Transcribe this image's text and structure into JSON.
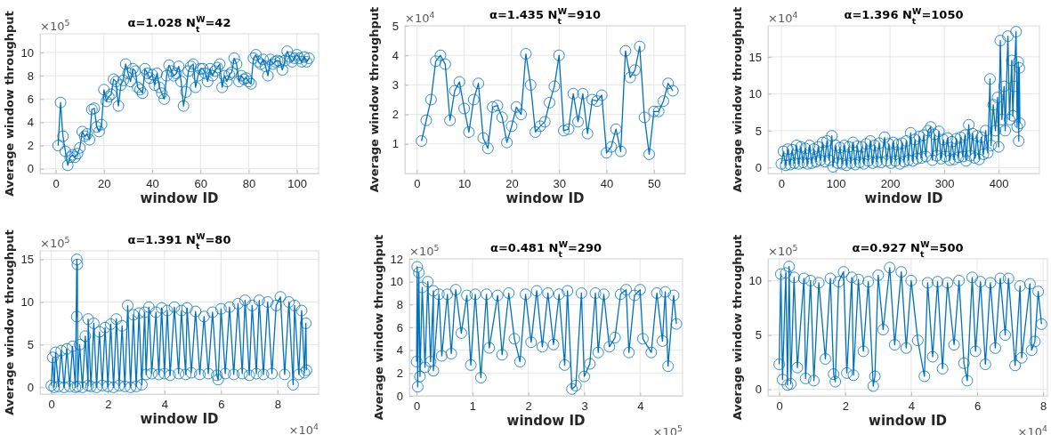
{
  "chart_data": [
    {
      "type": "line",
      "title": "α=1.028 N$_{t}$$^{W}$=42",
      "xlabel": "window ID",
      "ylabel": "Average window throughput",
      "annotations": [
        "×10$^{5}$"
      ],
      "marker": "circle",
      "grid": true,
      "xlim": [
        -6.5,
        109
      ],
      "ylim": [
        -0.4,
        11.6
      ],
      "xticks": [
        0,
        20,
        40,
        60,
        80,
        100
      ],
      "yticks": [
        0,
        2,
        4,
        6,
        8,
        10
      ],
      "x": [
        1,
        2,
        3,
        4,
        5,
        6,
        7,
        8,
        9,
        10,
        11,
        12,
        13,
        14,
        15,
        16,
        17,
        18,
        19,
        20,
        21,
        22,
        23,
        24,
        25,
        26,
        27,
        28,
        29,
        30,
        31,
        32,
        33,
        34,
        35,
        36,
        37,
        38,
        39,
        40,
        41,
        42,
        43,
        44,
        45,
        46,
        47,
        48,
        49,
        50,
        51,
        52,
        53,
        54,
        55,
        56,
        57,
        58,
        59,
        60,
        61,
        62,
        63,
        64,
        65,
        66,
        67,
        68,
        69,
        70,
        71,
        72,
        73,
        74,
        75,
        76,
        77,
        78,
        79,
        80,
        81,
        82,
        83,
        84,
        85,
        86,
        87,
        88,
        89,
        90,
        91,
        92,
        93,
        94,
        95,
        96,
        97,
        98,
        99,
        100,
        101,
        102,
        103,
        104,
        105
      ],
      "series": [
        {
          "color": "#0072bd",
          "values": [
            2.0,
            5.7,
            2.8,
            1.5,
            0.3,
            1.0,
            1.2,
            1.0,
            1.3,
            1.8,
            3.2,
            2.8,
            3.0,
            2.5,
            5.1,
            5.2,
            3.6,
            3.2,
            3.8,
            6.8,
            5.8,
            6.2,
            6.4,
            7.7,
            7.5,
            5.4,
            7.2,
            7.6,
            9.0,
            8.2,
            7.5,
            8.6,
            8.4,
            7.0,
            6.8,
            6.5,
            8.6,
            8.2,
            7.8,
            8.1,
            7.2,
            8.2,
            7.0,
            6.5,
            6.0,
            8.0,
            8.9,
            8.4,
            8.0,
            8.2,
            8.8,
            7.5,
            5.4,
            6.6,
            8.4,
            8.8,
            9.0,
            7.0,
            8.0,
            8.6,
            8.6,
            8.2,
            7.5,
            8.6,
            8.0,
            8.4,
            8.7,
            9.0,
            7.0,
            8.0,
            7.5,
            8.1,
            8.3,
            9.5,
            9.0,
            7.5,
            8.0,
            7.7,
            7.8,
            7.5,
            7.3,
            9.5,
            9.8,
            9.2,
            9.0,
            9.4,
            8.8,
            8.0,
            9.4,
            9.0,
            9.2,
            9.3,
            9.2,
            8.5,
            9.3,
            10.1,
            9.6,
            9.2,
            9.5,
            9.8,
            9.5,
            9.2,
            9.6,
            9.2,
            9.5
          ]
        }
      ]
    },
    {
      "type": "line",
      "title": "α=1.435 N$_{t}$$^{W}$=910",
      "xlabel": "window ID",
      "ylabel": "Average window throughput",
      "annotations": [
        "×10$^{4}$"
      ],
      "marker": "circle",
      "grid": true,
      "xlim": [
        -2.5,
        56.6
      ],
      "ylim": [
        0,
        5
      ],
      "xticks": [
        0,
        10,
        20,
        30,
        40,
        50
      ],
      "yticks": [
        1,
        2,
        3,
        4,
        5
      ],
      "x": [
        1,
        2,
        3,
        4,
        5,
        6,
        7,
        8,
        9,
        10,
        11,
        12,
        13,
        14,
        15,
        16,
        17,
        18,
        19,
        20,
        21,
        22,
        23,
        24,
        25,
        26,
        27,
        28,
        29,
        30,
        31,
        32,
        33,
        34,
        35,
        36,
        37,
        38,
        39,
        40,
        41,
        42,
        43,
        44,
        45,
        46,
        47,
        48,
        49,
        50,
        51,
        52,
        53,
        54
      ],
      "series": [
        {
          "color": "#0072bd",
          "values": [
            1.1,
            1.8,
            2.5,
            3.8,
            4.0,
            3.7,
            1.8,
            2.8,
            3.1,
            2.2,
            1.4,
            2.5,
            3.05,
            1.2,
            0.85,
            2.25,
            2.3,
            1.9,
            1.05,
            1.6,
            2.25,
            2.0,
            4.05,
            3.0,
            1.4,
            1.6,
            1.75,
            2.4,
            2.95,
            4.0,
            1.45,
            1.5,
            2.7,
            1.75,
            2.7,
            1.35,
            2.5,
            2.45,
            2.65,
            0.7,
            0.9,
            1.5,
            0.75,
            4.15,
            3.25,
            3.5,
            4.3,
            1.9,
            0.65,
            2.1,
            2.1,
            2.45,
            3.05,
            2.8
          ]
        }
      ]
    },
    {
      "type": "line",
      "title": "α=1.396 N$_{t}$$^{W}$=1050",
      "xlabel": "window ID",
      "ylabel": "Average window throughput",
      "annotations": [
        "×10$^{4}$"
      ],
      "marker": "circle",
      "grid": true,
      "xlim": [
        -24.5,
        475
      ],
      "ylim": [
        -0.8,
        19.2
      ],
      "xticks": [
        0,
        100,
        200,
        300,
        400
      ],
      "yticks": [
        0,
        5,
        10,
        15
      ],
      "x": [
        0,
        4,
        8,
        12,
        16,
        20,
        24,
        28,
        32,
        36,
        40,
        44,
        48,
        52,
        56,
        60,
        64,
        68,
        72,
        76,
        80,
        84,
        88,
        93,
        95,
        100,
        104,
        108,
        112,
        116,
        120,
        124,
        128,
        132,
        136,
        140,
        144,
        148,
        152,
        156,
        160,
        164,
        168,
        172,
        176,
        180,
        184,
        190,
        194,
        198,
        202,
        206,
        210,
        214,
        218,
        222,
        226,
        230,
        234,
        238,
        242,
        246,
        250,
        254,
        258,
        262,
        266,
        270,
        275,
        278,
        282,
        286,
        290,
        294,
        298,
        302,
        306,
        310,
        314,
        318,
        322,
        326,
        330,
        334,
        338,
        340,
        345,
        348,
        352,
        356,
        360,
        364,
        368,
        372,
        376,
        380,
        384,
        386,
        390,
        394,
        398,
        400,
        403,
        406,
        410,
        412,
        417,
        420,
        424,
        426,
        428,
        432,
        434,
        436,
        437,
        438,
        439
      ],
      "series": [
        {
          "color": "#0072bd",
          "values": [
            0.5,
            2.2,
            0.3,
            2.5,
            0.4,
            2.4,
            0.6,
            3.0,
            0.5,
            2.8,
            0.7,
            2.6,
            0.5,
            3.0,
            0.6,
            2.5,
            0.8,
            2.8,
            1.0,
            3.4,
            0.8,
            3.6,
            1.0,
            4.3,
            0.1,
            3.0,
            0.6,
            2.7,
            0.5,
            3.0,
            0.3,
            2.8,
            0.6,
            3.4,
            0.4,
            2.9,
            0.7,
            2.8,
            0.5,
            3.2,
            0.9,
            3.6,
            0.6,
            3.0,
            0.8,
            3.3,
            0.7,
            4.1,
            0.9,
            3.2,
            0.6,
            3.4,
            0.9,
            3.1,
            0.5,
            3.3,
            0.8,
            3.6,
            1.0,
            4.7,
            0.9,
            3.8,
            1.2,
            4.2,
            1.3,
            4.4,
            1.5,
            5.0,
            5.5,
            1.0,
            4.5,
            1.6,
            4.9,
            1.2,
            3.8,
            1.5,
            4.0,
            1.0,
            3.5,
            1.1,
            3.9,
            1.4,
            4.1,
            1.5,
            4.4,
            0.9,
            5.8,
            1.6,
            4.6,
            1.3,
            4.3,
            1.1,
            4.1,
            1.8,
            5.0,
            2.0,
            12.0,
            3.0,
            8.5,
            5.0,
            9.5,
            2.8,
            17.2,
            6.5,
            11.0,
            5.0,
            17.8,
            6.5,
            14.5,
            7.0,
            11.0,
            18.4,
            5.5,
            14.3,
            3.6,
            13.5,
            6.0
          ]
        }
      ]
    },
    {
      "type": "line",
      "title": "α=1.391 N$_{t}$$^{W}$=80",
      "xlabel": "window ID",
      "ylabel": "Average window throughput",
      "annotations": [
        "×10$^{5}$",
        "×10$^{4}$"
      ],
      "marker": "circle",
      "grid": true,
      "xlim": [
        -0.4,
        9.45
      ],
      "ylim": [
        -0.8,
        16
      ],
      "xticks": [
        0,
        2,
        4,
        6,
        8
      ],
      "yticks": [
        0,
        5,
        10,
        15
      ],
      "x": [
        0,
        0.05,
        0.1,
        0.15,
        0.25,
        0.35,
        0.45,
        0.55,
        0.65,
        0.75,
        0.85,
        0.9,
        0.9,
        0.92,
        0.93,
        1.0,
        1.1,
        1.2,
        1.3,
        1.3,
        1.4,
        1.5,
        1.6,
        1.7,
        1.8,
        1.9,
        2.0,
        2.1,
        2.2,
        2.3,
        2.4,
        2.5,
        2.6,
        2.7,
        2.8,
        2.9,
        3.0,
        3.1,
        3.2,
        3.3,
        3.35,
        3.45,
        3.55,
        3.7,
        3.8,
        3.9,
        4.0,
        4.1,
        4.2,
        4.35,
        4.5,
        4.6,
        4.75,
        4.8,
        4.95,
        5.1,
        5.25,
        5.4,
        5.55,
        5.7,
        5.85,
        5.9,
        6.0,
        6.15,
        6.3,
        6.45,
        6.6,
        6.75,
        6.85,
        7.0,
        7.1,
        7.25,
        7.35,
        7.5,
        7.65,
        7.8,
        7.95,
        8.1,
        8.25,
        8.4,
        8.55,
        8.6,
        8.75,
        8.85,
        8.95,
        9.0,
        9.02
      ],
      "series": [
        {
          "color": "#0072bd",
          "values": [
            0.2,
            3.5,
            0.0,
            4.1,
            0.1,
            4.3,
            0.0,
            4.5,
            0.1,
            4.8,
            0.0,
            15.0,
            8.3,
            14.4,
            0.1,
            5.0,
            0.0,
            6.0,
            0.2,
            8.0,
            0.1,
            7.5,
            0.0,
            6.5,
            0.2,
            7.0,
            0.1,
            7.4,
            0.0,
            8.0,
            0.2,
            7.2,
            0.1,
            9.6,
            0.0,
            8.5,
            0.1,
            8.7,
            0.3,
            8.8,
            1.5,
            9.4,
            1.6,
            8.8,
            1.5,
            9.3,
            1.6,
            9.0,
            1.4,
            9.4,
            1.6,
            9.0,
            1.5,
            9.3,
            1.7,
            8.9,
            1.5,
            8.3,
            1.6,
            8.8,
            1.4,
            0.9,
            9.2,
            1.6,
            9.4,
            1.5,
            9.8,
            1.6,
            10.2,
            1.4,
            9.6,
            1.6,
            10.2,
            1.5,
            10.0,
            1.6,
            9.6,
            10.6,
            1.5,
            10.0,
            0.3,
            9.6,
            1.5,
            9.0,
            1.7,
            7.5,
            2.0
          ]
        }
      ]
    },
    {
      "type": "line",
      "title": "α=0.481 N$_{t}$$^{W}$=290",
      "xlabel": "window ID",
      "ylabel": "Average window throughput",
      "annotations": [
        "×10$^{5}$",
        "×10$^{5}$"
      ],
      "marker": "circle",
      "grid": true,
      "xlim": [
        -0.13,
        4.76
      ],
      "ylim": [
        0,
        12
      ],
      "xticks": [
        0,
        1,
        2,
        3,
        4
      ],
      "yticks": [
        0,
        2,
        4,
        6,
        8,
        10,
        12
      ],
      "x": [
        0,
        0.01,
        0.02,
        0.04,
        0.06,
        0.1,
        0.15,
        0.2,
        0.25,
        0.3,
        0.3,
        0.4,
        0.45,
        0.55,
        0.62,
        0.7,
        0.8,
        0.9,
        0.97,
        1.05,
        1.15,
        1.25,
        1.3,
        1.45,
        1.53,
        1.65,
        1.75,
        1.85,
        1.95,
        2.05,
        2.15,
        2.25,
        2.35,
        2.45,
        2.55,
        2.65,
        2.7,
        2.78,
        2.85,
        2.95,
        3.0,
        3.1,
        3.2,
        3.25,
        3.35,
        3.45,
        3.55,
        3.65,
        3.75,
        3.8,
        3.9,
        4.0,
        4.05,
        4.2,
        4.3,
        4.4,
        4.45,
        4.5,
        4.6,
        4.65
      ],
      "series": [
        {
          "color": "#0072bd",
          "values": [
            3.0,
            11.3,
            0.8,
            10.8,
            1.7,
            9.5,
            2.5,
            10.0,
            3.0,
            9.2,
            2.2,
            8.9,
            3.5,
            8.9,
            3.7,
            9.3,
            5.5,
            8.8,
            2.7,
            8.9,
            1.6,
            8.9,
            4.2,
            8.8,
            3.6,
            9.0,
            5.0,
            3.0,
            8.9,
            4.7,
            9.2,
            4.3,
            9.0,
            4.5,
            8.9,
            2.7,
            9.2,
            0.6,
            0.9,
            9.0,
            1.7,
            2.8,
            9.0,
            3.8,
            8.9,
            4.3,
            5.1,
            8.9,
            9.3,
            3.8,
            8.8,
            9.3,
            5.0,
            3.8,
            9.0,
            4.8,
            9.1,
            2.6,
            8.8,
            6.3
          ]
        }
      ]
    },
    {
      "type": "line",
      "title": "α=0.927 N$_{t}$$^{W}$=500",
      "xlabel": "window ID",
      "ylabel": "Average window throughput",
      "annotations": [
        "×10$^{5}$",
        "×10$^{4}$"
      ],
      "marker": "circle",
      "grid": true,
      "xlim": [
        -0.34,
        8.13
      ],
      "ylim": [
        -0.6,
        12
      ],
      "xticks": [
        0,
        2,
        4,
        6,
        8
      ],
      "yticks": [
        0,
        5,
        10
      ],
      "x": [
        0,
        0.05,
        0.1,
        0.2,
        0.25,
        0.3,
        0.35,
        0.45,
        0.55,
        0.75,
        0.8,
        0.95,
        1.05,
        1.2,
        1.4,
        1.55,
        1.65,
        1.7,
        1.8,
        1.95,
        2.05,
        2.2,
        2.25,
        2.4,
        2.55,
        2.7,
        2.85,
        2.9,
        3.0,
        3.15,
        3.35,
        3.5,
        3.7,
        3.85,
        4.0,
        4.2,
        4.4,
        4.5,
        4.65,
        4.8,
        4.95,
        5.1,
        5.3,
        5.45,
        5.6,
        5.7,
        5.85,
        5.95,
        6.1,
        6.25,
        6.4,
        6.55,
        6.7,
        6.85,
        6.95,
        7.15,
        7.3,
        7.35,
        7.6,
        7.65,
        7.75,
        7.85,
        7.95
      ],
      "series": [
        {
          "color": "#0072bd",
          "values": [
            2.3,
            10.6,
            0.9,
            10.7,
            0.4,
            11.3,
            0.5,
            10.3,
            2.0,
            10.2,
            1.0,
            10.0,
            0.8,
            9.8,
            2.8,
            10.2,
            1.4,
            0.7,
            9.9,
            10.8,
            1.5,
            10.3,
            1.3,
            10.1,
            3.5,
            9.9,
            0.3,
            1.2,
            10.5,
            5.5,
            11.2,
            4.1,
            10.8,
            3.8,
            10.0,
            4.5,
            1.2,
            9.8,
            3.0,
            9.9,
            1.9,
            9.8,
            4.1,
            10.0,
            2.4,
            0.8,
            10.3,
            3.5,
            9.9,
            2.3,
            9.8,
            3.8,
            10.2,
            5.0,
            10.2,
            2.2,
            9.5,
            2.9,
            9.7,
            3.6,
            4.4,
            9.0,
            6.0
          ]
        }
      ]
    }
  ]
}
